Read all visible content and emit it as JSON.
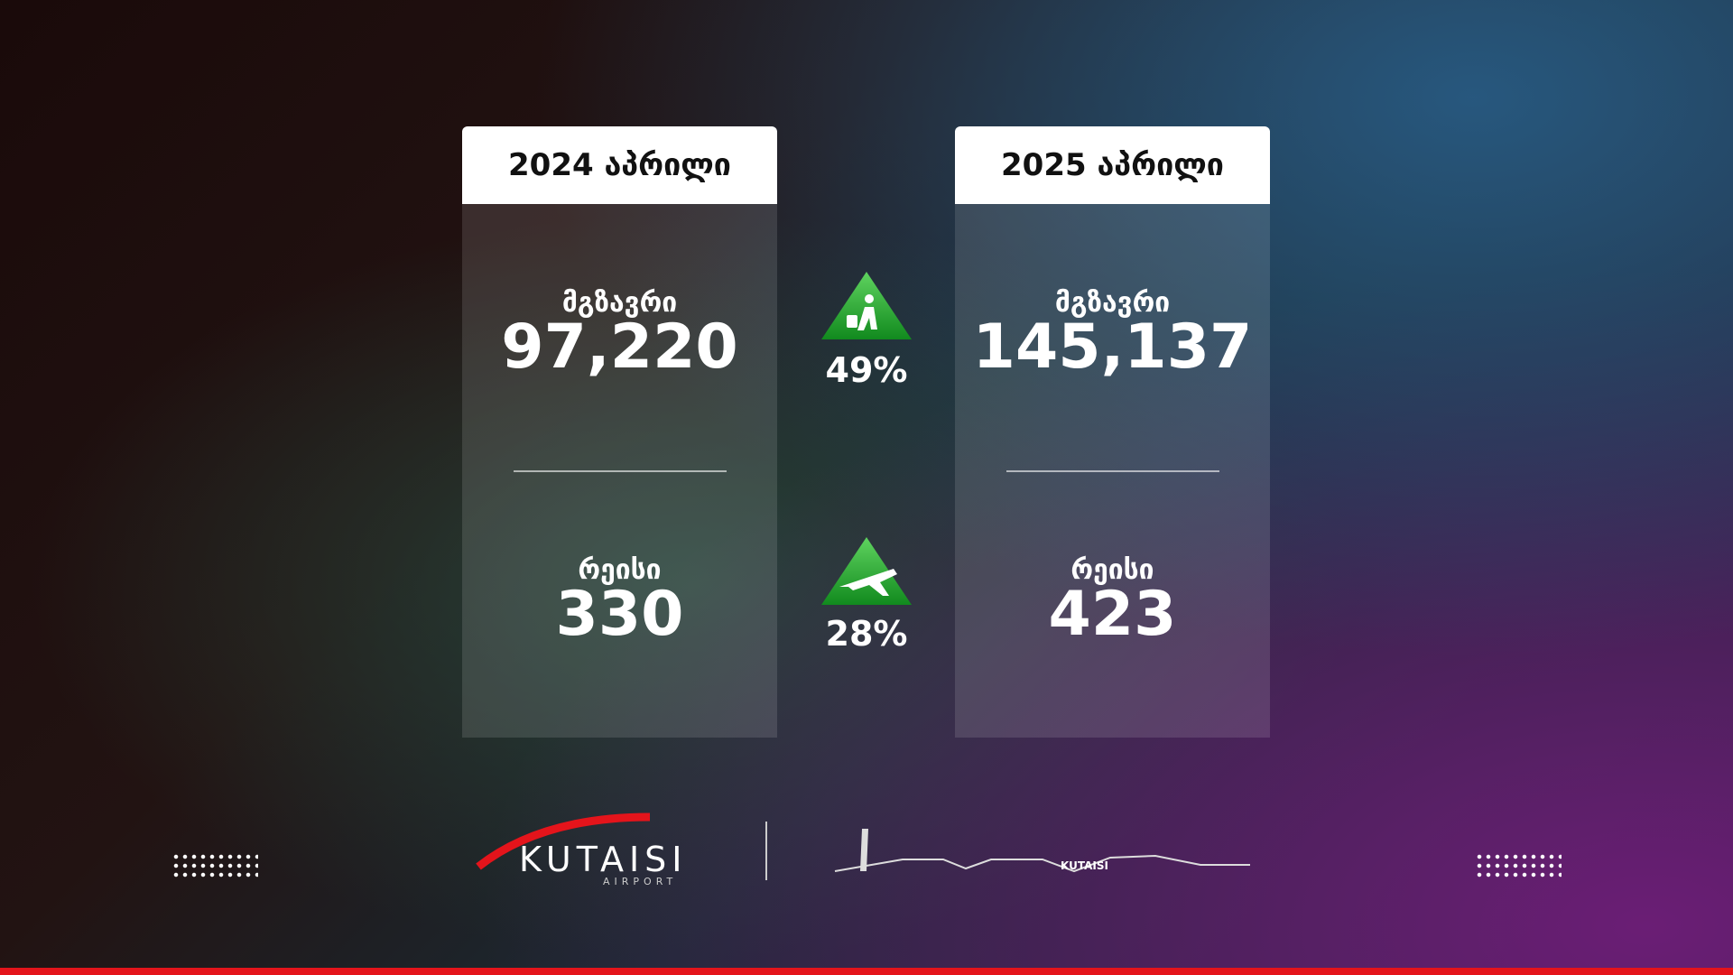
{
  "columns": [
    {
      "header": "2024 აპრილი",
      "passengers_label": "მგზავრი",
      "passengers": "97,220",
      "flights_label": "რეისი",
      "flights": "330"
    },
    {
      "header": "2025 აპრილი",
      "passengers_label": "მგზავრი",
      "passengers": "145,137",
      "flights_label": "რეისი",
      "flights": "423"
    }
  ],
  "changes": {
    "passengers": "49%",
    "flights": "28%"
  },
  "logo": {
    "name": "KUTAISI",
    "sub": "AIRPORT",
    "badge": "KUTAISI"
  }
}
